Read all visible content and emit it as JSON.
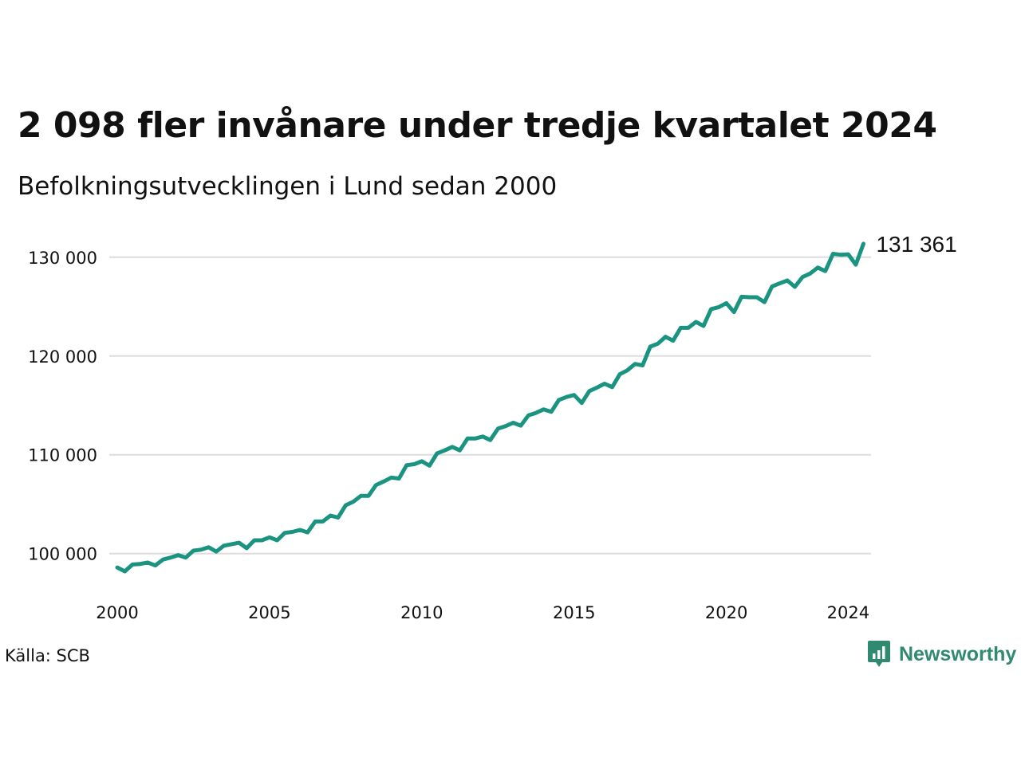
{
  "title": "2 098 fler invånare under tredje kvartalet 2024",
  "subtitle": "Befolkningsutvecklingen i Lund sedan 2000",
  "source": "Källa: SCB",
  "brand": "Newsworthy",
  "colors": {
    "line": "#1a9480",
    "grid": "#dddddd",
    "brand": "#2f8a70"
  },
  "chart_data": {
    "type": "line",
    "x_tick_labels": [
      "2000",
      "2005",
      "2010",
      "2015",
      "2020",
      "2024"
    ],
    "x_ticks": [
      2000,
      2005,
      2010,
      2015,
      2020,
      2024
    ],
    "y_tick_labels": [
      "100 000",
      "110 000",
      "120 000",
      "130 000"
    ],
    "y_ticks": [
      100000,
      110000,
      120000,
      130000
    ],
    "xlim": [
      2000,
      2024.75
    ],
    "ylim": [
      97800,
      132000
    ],
    "grid": "horizontal",
    "end_label": "131 361",
    "series": [
      {
        "x_start": 2000,
        "step": 0.25,
        "values": [
          98600,
          98200,
          98900,
          98950,
          99100,
          98800,
          99400,
          99600,
          99850,
          99600,
          100300,
          100400,
          100650,
          100200,
          100800,
          100950,
          101100,
          100550,
          101350,
          101350,
          101650,
          101350,
          102100,
          102200,
          102400,
          102150,
          103250,
          103250,
          103850,
          103650,
          104900,
          105250,
          105850,
          105850,
          106950,
          107300,
          107700,
          107600,
          108950,
          109050,
          109350,
          108900,
          110150,
          110450,
          110800,
          110450,
          111650,
          111650,
          111850,
          111500,
          112650,
          112900,
          113250,
          112950,
          114000,
          114250,
          114600,
          114350,
          115550,
          115850,
          116050,
          115250,
          116450,
          116800,
          117200,
          116850,
          118150,
          118550,
          119200,
          119050,
          120950,
          121250,
          121950,
          121550,
          122850,
          122850,
          123450,
          123050,
          124750,
          124950,
          125350,
          124450,
          126000,
          125950,
          125950,
          125450,
          127050,
          127350,
          127650,
          127000,
          128000,
          128350,
          128950,
          128600,
          130350,
          130250,
          130300,
          129250,
          131361
        ]
      }
    ]
  }
}
